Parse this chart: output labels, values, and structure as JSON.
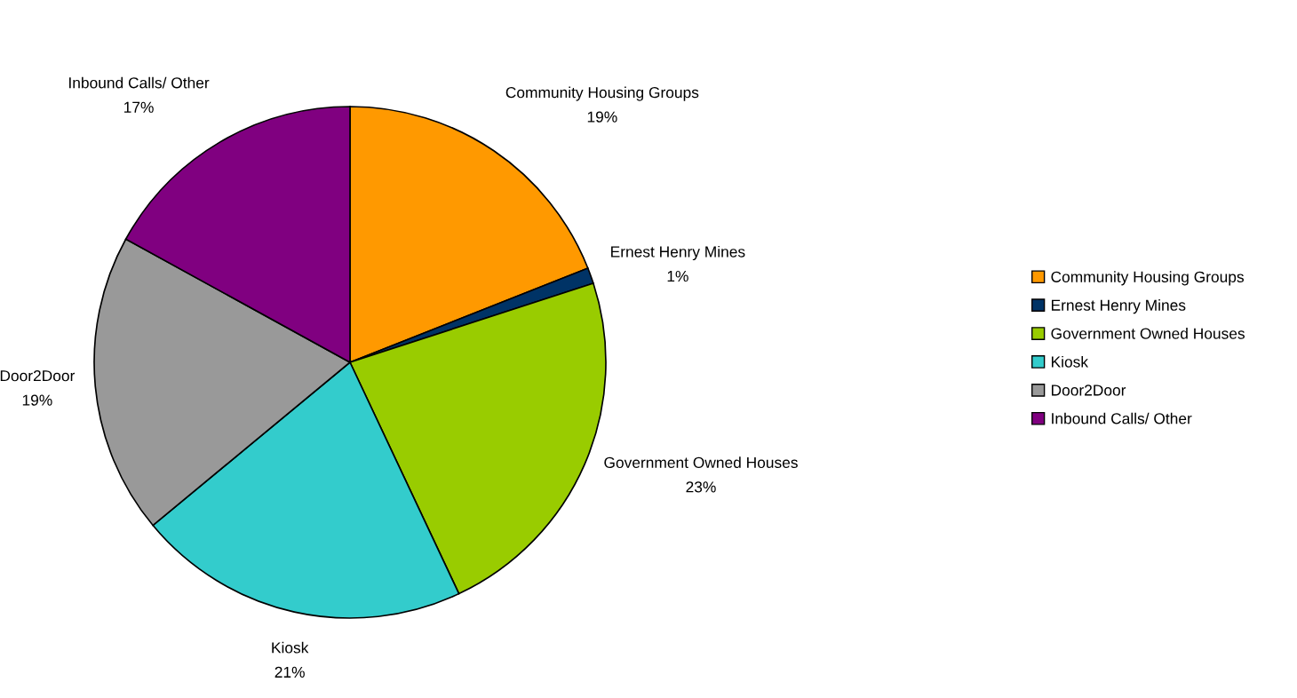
{
  "chart_data": {
    "type": "pie",
    "categories": [
      "Community Housing Groups",
      "Ernest Henry Mines",
      "Government Owned Houses",
      "Kiosk",
      "Door2Door",
      "Inbound Calls/ Other"
    ],
    "values": [
      19,
      1,
      23,
      21,
      19,
      17
    ],
    "colors": [
      "#ff9900",
      "#003366",
      "#99cc00",
      "#33cccc",
      "#999999",
      "#800080"
    ],
    "value_labels": [
      "19%",
      "1%",
      "23%",
      "21%",
      "19%",
      "17%"
    ],
    "legend": "right"
  }
}
